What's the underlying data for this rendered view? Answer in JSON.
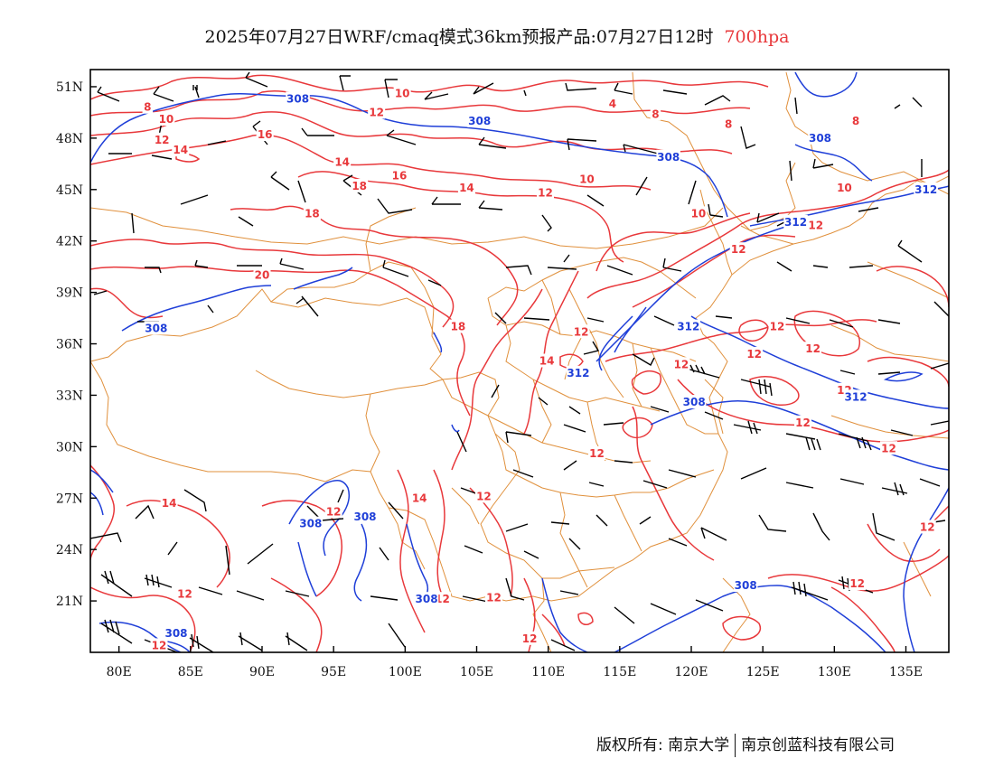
{
  "title": {
    "main": "2025年07月27日WRF/cmaq模式36km预报产品:07月27日12时",
    "level": "700hpa",
    "level_color": "#e8383b"
  },
  "axes": {
    "lat_labels": [
      "51N",
      "48N",
      "45N",
      "42N",
      "39N",
      "36N",
      "33N",
      "30N",
      "27N",
      "24N",
      "21N"
    ],
    "lat_values": [
      51,
      48,
      45,
      42,
      39,
      36,
      33,
      30,
      27,
      24,
      21
    ],
    "lon_labels": [
      "80E",
      "85E",
      "90E",
      "95E",
      "100E",
      "105E",
      "110E",
      "115E",
      "120E",
      "125E",
      "130E",
      "135E"
    ],
    "lon_values": [
      80,
      85,
      90,
      95,
      100,
      105,
      110,
      115,
      120,
      125,
      130,
      135
    ],
    "lon_range": [
      78,
      138
    ],
    "lat_range": [
      18,
      52
    ]
  },
  "layers": {
    "geopotential_contours": {
      "color": "#1f3fd8",
      "levels": [
        "308",
        "312"
      ]
    },
    "temperature_contours": {
      "color": "#e8383b",
      "levels": [
        "4",
        "8",
        "10",
        "12",
        "14",
        "16",
        "18",
        "20"
      ]
    },
    "boundaries": {
      "color": "#e0903c"
    },
    "wind_barbs": {
      "color": "#000000"
    }
  },
  "contour_labels": [
    {
      "text": "10",
      "lon": 99.8,
      "lat": 50.6,
      "color": "red"
    },
    {
      "text": "4",
      "lon": 114.5,
      "lat": 50.0,
      "color": "red"
    },
    {
      "text": "8",
      "lon": 82.0,
      "lat": 49.8,
      "color": "red"
    },
    {
      "text": "10",
      "lon": 83.3,
      "lat": 49.1,
      "color": "red"
    },
    {
      "text": "12",
      "lon": 98.0,
      "lat": 49.5,
      "color": "red"
    },
    {
      "text": "8",
      "lon": 117.5,
      "lat": 49.4,
      "color": "red"
    },
    {
      "text": "8",
      "lon": 122.6,
      "lat": 48.8,
      "color": "red"
    },
    {
      "text": "8",
      "lon": 131.5,
      "lat": 49.0,
      "color": "red"
    },
    {
      "text": "12",
      "lon": 83.0,
      "lat": 47.9,
      "color": "red"
    },
    {
      "text": "16",
      "lon": 90.2,
      "lat": 48.2,
      "color": "red"
    },
    {
      "text": "14",
      "lon": 84.3,
      "lat": 47.3,
      "color": "red"
    },
    {
      "text": "14",
      "lon": 95.6,
      "lat": 46.6,
      "color": "red"
    },
    {
      "text": "16",
      "lon": 99.6,
      "lat": 45.8,
      "color": "red"
    },
    {
      "text": "18",
      "lon": 96.8,
      "lat": 45.2,
      "color": "red"
    },
    {
      "text": "14",
      "lon": 104.3,
      "lat": 45.1,
      "color": "red"
    },
    {
      "text": "12",
      "lon": 109.8,
      "lat": 44.8,
      "color": "red"
    },
    {
      "text": "10",
      "lon": 112.7,
      "lat": 45.6,
      "color": "red"
    },
    {
      "text": "10",
      "lon": 130.7,
      "lat": 45.1,
      "color": "red"
    },
    {
      "text": "10",
      "lon": 120.5,
      "lat": 43.6,
      "color": "red"
    },
    {
      "text": "18",
      "lon": 93.5,
      "lat": 43.6,
      "color": "red"
    },
    {
      "text": "12",
      "lon": 128.7,
      "lat": 42.9,
      "color": "red"
    },
    {
      "text": "12",
      "lon": 123.3,
      "lat": 41.5,
      "color": "red"
    },
    {
      "text": "20",
      "lon": 90.0,
      "lat": 40.0,
      "color": "red"
    },
    {
      "text": "18",
      "lon": 103.7,
      "lat": 37.0,
      "color": "red"
    },
    {
      "text": "12",
      "lon": 112.3,
      "lat": 36.7,
      "color": "red"
    },
    {
      "text": "14",
      "lon": 109.9,
      "lat": 35.0,
      "color": "red"
    },
    {
      "text": "12",
      "lon": 119.3,
      "lat": 34.8,
      "color": "red"
    },
    {
      "text": "12",
      "lon": 124.4,
      "lat": 35.4,
      "color": "red"
    },
    {
      "text": "12",
      "lon": 126.0,
      "lat": 37.0,
      "color": "red"
    },
    {
      "text": "12",
      "lon": 128.5,
      "lat": 35.7,
      "color": "red"
    },
    {
      "text": "12",
      "lon": 130.7,
      "lat": 33.3,
      "color": "red"
    },
    {
      "text": "12",
      "lon": 127.8,
      "lat": 31.4,
      "color": "red"
    },
    {
      "text": "12",
      "lon": 113.4,
      "lat": 29.6,
      "color": "red"
    },
    {
      "text": "12",
      "lon": 133.8,
      "lat": 29.9,
      "color": "red"
    },
    {
      "text": "14",
      "lon": 83.5,
      "lat": 26.7,
      "color": "red"
    },
    {
      "text": "12",
      "lon": 95.0,
      "lat": 26.2,
      "color": "red"
    },
    {
      "text": "14",
      "lon": 101.0,
      "lat": 27.0,
      "color": "red"
    },
    {
      "text": "12",
      "lon": 105.5,
      "lat": 27.1,
      "color": "red"
    },
    {
      "text": "12",
      "lon": 136.5,
      "lat": 25.3,
      "color": "red"
    },
    {
      "text": "12",
      "lon": 131.6,
      "lat": 22.0,
      "color": "red"
    },
    {
      "text": "12",
      "lon": 84.6,
      "lat": 21.4,
      "color": "red"
    },
    {
      "text": "12",
      "lon": 102.6,
      "lat": 21.1,
      "color": "red"
    },
    {
      "text": "12",
      "lon": 106.2,
      "lat": 21.2,
      "color": "red"
    },
    {
      "text": "12",
      "lon": 108.7,
      "lat": 18.8,
      "color": "red"
    },
    {
      "text": "12",
      "lon": 82.8,
      "lat": 18.4,
      "color": "red"
    },
    {
      "text": "308",
      "lon": 92.5,
      "lat": 50.3,
      "color": "blue"
    },
    {
      "text": "308",
      "lon": 105.2,
      "lat": 49.0,
      "color": "blue"
    },
    {
      "text": "308",
      "lon": 118.4,
      "lat": 46.9,
      "color": "blue"
    },
    {
      "text": "308",
      "lon": 129.0,
      "lat": 48.0,
      "color": "blue"
    },
    {
      "text": "312",
      "lon": 136.4,
      "lat": 45.0,
      "color": "blue"
    },
    {
      "text": "312",
      "lon": 127.3,
      "lat": 43.1,
      "color": "blue"
    },
    {
      "text": "308",
      "lon": 82.6,
      "lat": 36.9,
      "color": "blue"
    },
    {
      "text": "312",
      "lon": 119.8,
      "lat": 37.0,
      "color": "blue"
    },
    {
      "text": "312",
      "lon": 112.1,
      "lat": 34.3,
      "color": "blue"
    },
    {
      "text": "308",
      "lon": 120.2,
      "lat": 32.6,
      "color": "blue"
    },
    {
      "text": "312",
      "lon": 131.5,
      "lat": 32.9,
      "color": "blue"
    },
    {
      "text": "308",
      "lon": 93.4,
      "lat": 25.5,
      "color": "blue"
    },
    {
      "text": "308",
      "lon": 97.2,
      "lat": 25.9,
      "color": "blue"
    },
    {
      "text": "308",
      "lon": 123.8,
      "lat": 21.9,
      "color": "blue"
    },
    {
      "text": "308",
      "lon": 101.5,
      "lat": 21.1,
      "color": "blue"
    },
    {
      "text": "308",
      "lon": 84.0,
      "lat": 19.1,
      "color": "blue"
    }
  ],
  "footer": {
    "left": "版权所有: 南京大学",
    "right": "南京创蓝科技有限公司"
  }
}
